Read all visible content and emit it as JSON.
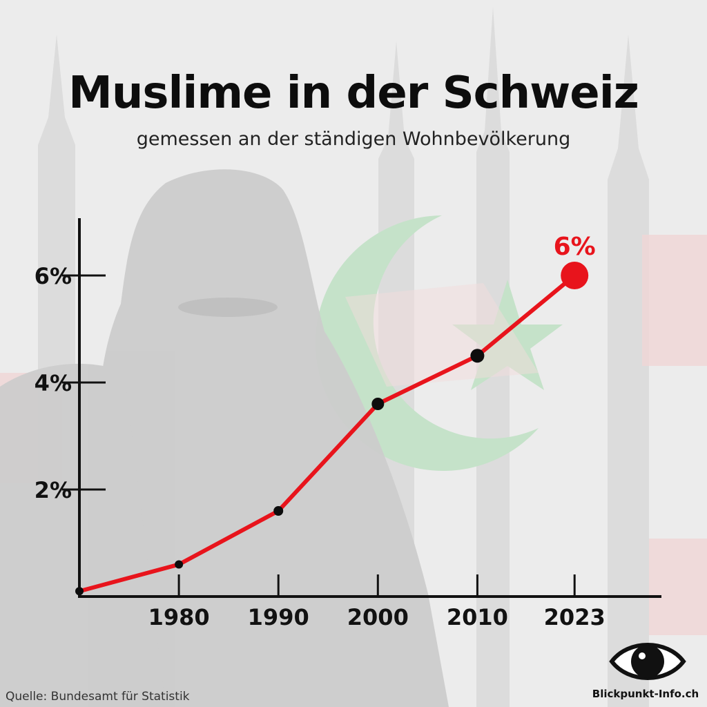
{
  "header": {
    "title": "Muslime in der Schweiz",
    "subtitle": "gemessen an der ständigen Wohnbevölkerung"
  },
  "footer": {
    "source": "Quelle: Bundesamt für Statistik",
    "brand": "Blickpunkt-Info.ch"
  },
  "colors": {
    "line": "#e8141c",
    "point": "#0d0d0d",
    "axis": "#111111",
    "background": "#ececec",
    "crescent": "#b8dcbd"
  },
  "chart_data": {
    "type": "line",
    "title": "Muslime in der Schweiz",
    "subtitle": "gemessen an der ständigen Wohnbevölkerung",
    "xlabel": "",
    "ylabel": "",
    "x_ticks": [
      "1980",
      "1990",
      "2000",
      "2010",
      "2023"
    ],
    "y_ticks": [
      "2%",
      "4%",
      "6%"
    ],
    "y_tick_values": [
      2,
      4,
      6
    ],
    "ylim": [
      0,
      7.2
    ],
    "series": [
      {
        "x": [
          "1970",
          "1980",
          "1990",
          "2000",
          "2010",
          "2023"
        ],
        "values": [
          0.1,
          0.6,
          1.6,
          3.6,
          4.5,
          6.0
        ]
      }
    ],
    "annotations": [
      {
        "x": "2023",
        "text": "6%"
      }
    ],
    "grid": false,
    "legend": "none"
  }
}
